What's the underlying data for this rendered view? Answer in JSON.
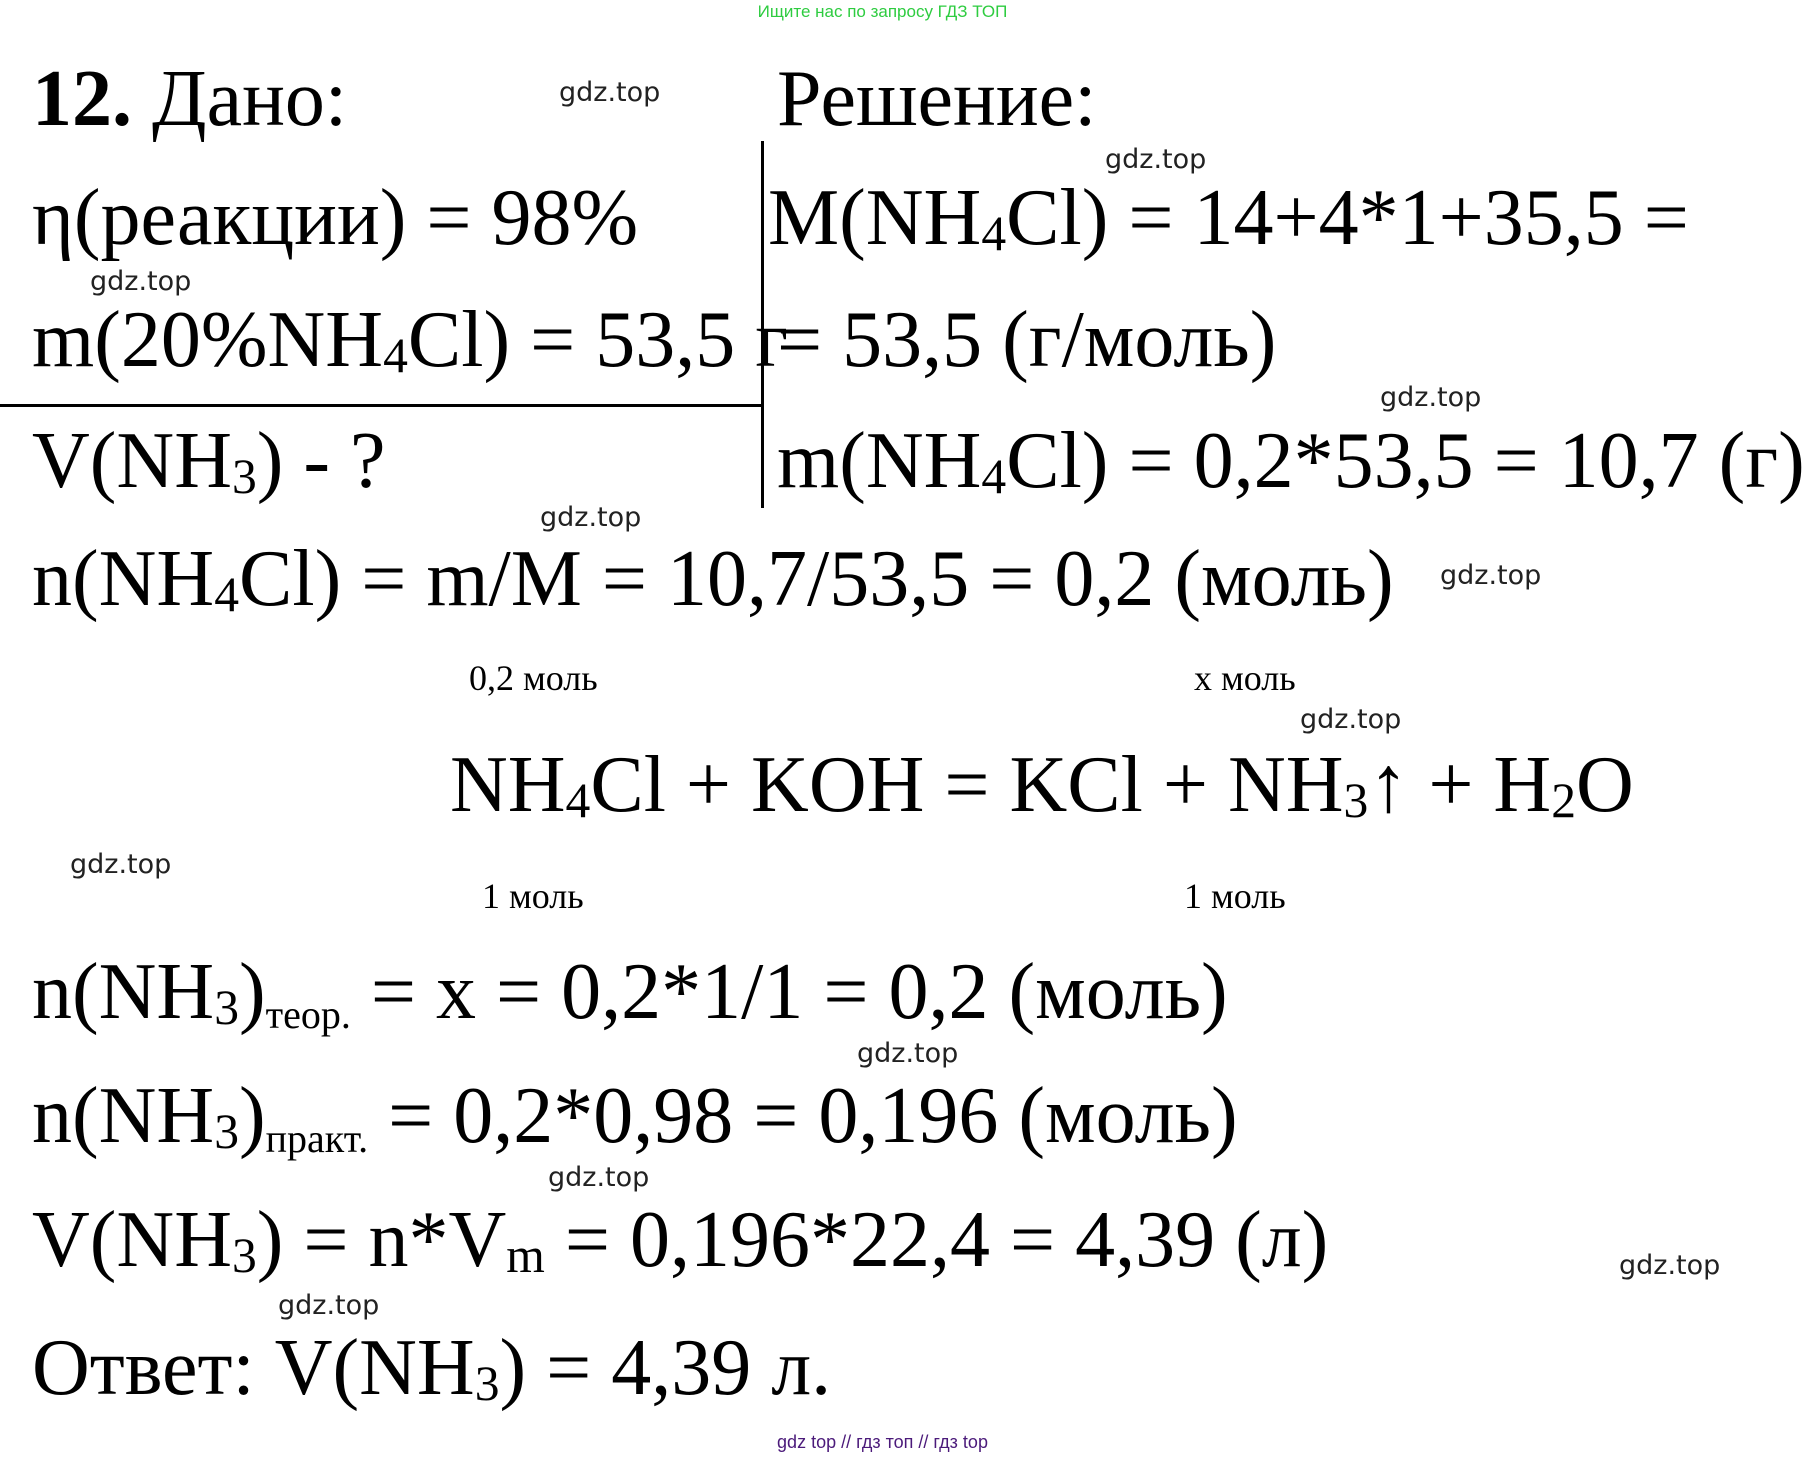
{
  "banner": "Ищите нас по запросу ГДЗ ТОП",
  "footer": "gdz top  //  гдз топ  //  гдз top",
  "watermark": "gdz.top",
  "lines": {
    "title": [
      {
        "t": "12.",
        "b": true
      },
      {
        "t": " Дано:"
      }
    ],
    "solution_title": [
      {
        "t": "Решение:"
      }
    ],
    "given_eta": [
      {
        "t": "η(реакции) = 98%"
      }
    ],
    "given_m": [
      {
        "t": "m(20%NH"
      },
      {
        "t": "4",
        "s": true
      },
      {
        "t": "Cl) = 53,5 г"
      }
    ],
    "find_v": [
      {
        "t": "V(NH"
      },
      {
        "t": "3",
        "s": true
      },
      {
        "t": ") - ?"
      }
    ],
    "molar_mass_1": [
      {
        "t": "M(NH"
      },
      {
        "t": "4",
        "s": true
      },
      {
        "t": "Cl) = 14+4*1+35,5 ="
      }
    ],
    "molar_mass_2": [
      {
        "t": "= 53,5 (г/моль)"
      }
    ],
    "mass_pure": [
      {
        "t": "m(NH"
      },
      {
        "t": "4",
        "s": true
      },
      {
        "t": "Cl) = 0,2*53,5 = 10,7 (г)"
      }
    ],
    "moles_nh4cl": [
      {
        "t": "n(NH"
      },
      {
        "t": "4",
        "s": true
      },
      {
        "t": "Cl) = m/M = 10,7/53,5 = 0,2 (моль)"
      }
    ],
    "equation": [
      {
        "t": "NH"
      },
      {
        "t": "4",
        "s": true
      },
      {
        "t": "Cl + KOH = KCl + NH"
      },
      {
        "t": "3",
        "s": true
      },
      {
        "t": "↑ + H"
      },
      {
        "t": "2",
        "s": true
      },
      {
        "t": "O"
      }
    ],
    "n_theor": [
      {
        "t": "n(NH"
      },
      {
        "t": "3",
        "s": true
      },
      {
        "t": ")"
      },
      {
        "t": "теор.",
        "s": true,
        "w": true
      },
      {
        "t": " = x = 0,2*1/1 = 0,2 (моль)"
      }
    ],
    "n_pract": [
      {
        "t": "n(NH"
      },
      {
        "t": "3",
        "s": true
      },
      {
        "t": ")"
      },
      {
        "t": "практ.",
        "s": true,
        "w": true
      },
      {
        "t": " = 0,2*0,98 = 0,196 (моль)"
      }
    ],
    "volume": [
      {
        "t": "V(NH"
      },
      {
        "t": "3",
        "s": true
      },
      {
        "t": ") = n*V"
      },
      {
        "t": "m",
        "s": true
      },
      {
        "t": " = 0,196*22,4 = 4,39 (л)"
      }
    ],
    "answer": [
      {
        "t": "Ответ: V(NH"
      },
      {
        "t": "3",
        "s": true
      },
      {
        "t": ") = 4,39 л."
      }
    ]
  },
  "labels": {
    "above_nh4cl": "0,2 моль",
    "above_nh3": "x моль",
    "below_nh4cl": "1 моль",
    "below_nh3": "1 моль"
  }
}
